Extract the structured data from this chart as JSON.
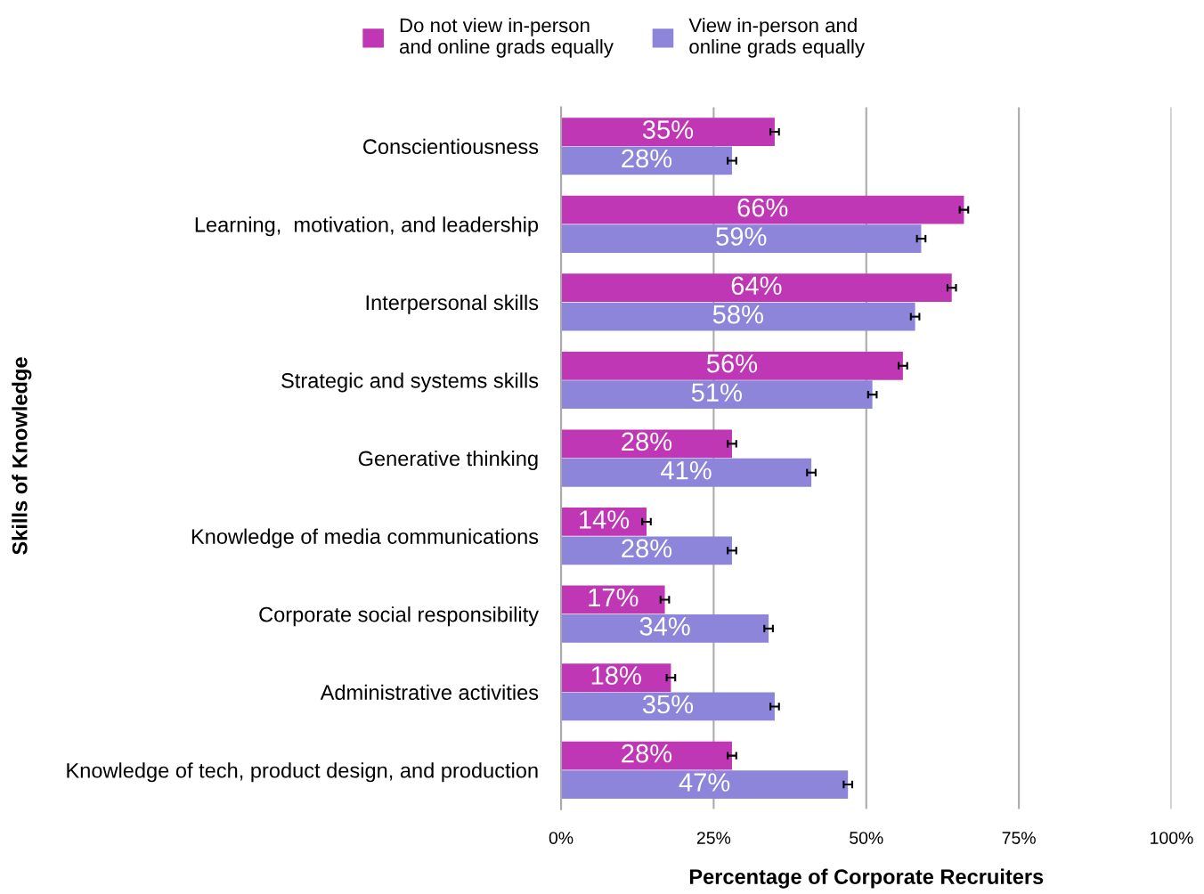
{
  "chart_data": {
    "type": "bar",
    "orientation": "horizontal",
    "categories": [
      "Conscientiousness",
      "Learning,  motivation, and leadership",
      "Interpersonal skills",
      "Strategic and systems skills",
      "Generative thinking",
      "Knowledge of media communications",
      "Corporate social responsibility",
      "Administrative activities",
      "Knowledge of tech, product design, and production"
    ],
    "series": [
      {
        "name": "Do not view in-person\nand online grads equally",
        "color": "#c037b5",
        "values": [
          35,
          66,
          64,
          56,
          28,
          14,
          17,
          18,
          28
        ],
        "value_labels": [
          "35%",
          "66%",
          "64%",
          "56%",
          "28%",
          "14%",
          "17%",
          "18%",
          "28%"
        ],
        "errors": [
          0.7,
          0.7,
          0.7,
          0.7,
          0.7,
          0.7,
          0.7,
          0.7,
          0.7
        ]
      },
      {
        "name": "View in-person and\nonline grads equally",
        "color": "#8c85d9",
        "values": [
          28,
          59,
          58,
          51,
          41,
          28,
          34,
          35,
          47
        ],
        "value_labels": [
          "28%",
          "59%",
          "58%",
          "51%",
          "41%",
          "28%",
          "34%",
          "35%",
          "47%"
        ],
        "errors": [
          0.7,
          0.7,
          0.7,
          0.7,
          0.7,
          0.7,
          0.7,
          0.7,
          0.7
        ]
      }
    ],
    "xlabel": "Percentage of Corporate Recruiters",
    "ylabel": "Skills of Knowledge",
    "xlim": [
      0,
      100
    ],
    "xticks": [
      {
        "value": 0,
        "label": "0%"
      },
      {
        "value": 25,
        "label": "25%"
      },
      {
        "value": 50,
        "label": "50%"
      },
      {
        "value": 75,
        "label": "75%"
      },
      {
        "value": 100,
        "label": "100%"
      }
    ],
    "grid": "x",
    "legend": "top"
  }
}
